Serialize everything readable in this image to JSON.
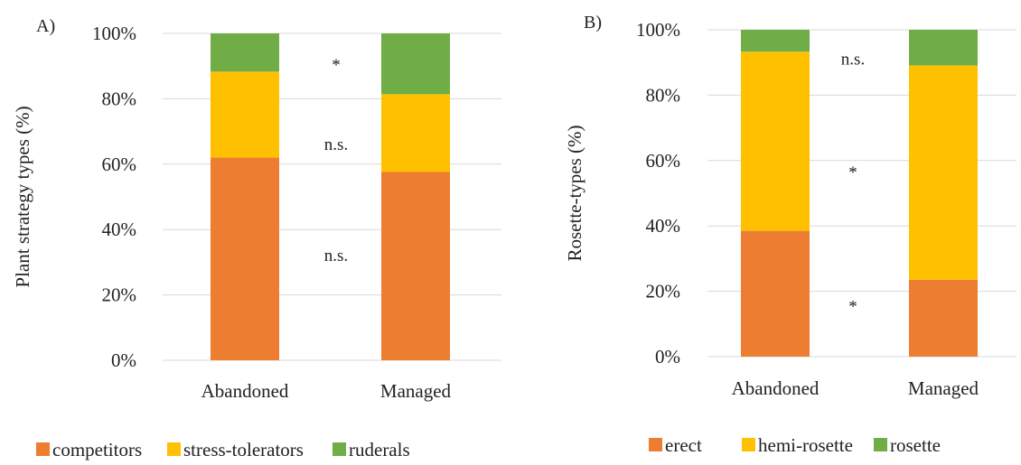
{
  "chart_data": [
    {
      "type": "bar",
      "stacked": true,
      "panel_label": "A)",
      "ylabel": "Plant strategy types  (%)",
      "categories": [
        "Abandoned",
        "Managed"
      ],
      "ylim": [
        0,
        100
      ],
      "yticks": [
        "0%",
        "20%",
        "40%",
        "60%",
        "80%",
        "100%"
      ],
      "grid": true,
      "legend_position": "bottom",
      "series": [
        {
          "name": "competitors",
          "color": "#ED7D31",
          "values": [
            62,
            57.6
          ]
        },
        {
          "name": "stress-tolerators",
          "color": "#FFC000",
          "values": [
            26.3,
            23.8
          ]
        },
        {
          "name": "ruderals",
          "color": "#70AD47",
          "values": [
            11.7,
            18.6
          ]
        }
      ],
      "annotations": [
        {
          "text": "*",
          "y": 92
        },
        {
          "text": "n.s.",
          "y": 66
        },
        {
          "text": "n.s.",
          "y": 32
        }
      ]
    },
    {
      "type": "bar",
      "stacked": true,
      "panel_label": "B)",
      "ylabel": "Rosette-types  (%)",
      "categories": [
        "Abandoned",
        "Managed"
      ],
      "ylim": [
        0,
        100
      ],
      "yticks": [
        "0%",
        "20%",
        "40%",
        "60%",
        "80%",
        "100%"
      ],
      "grid": true,
      "legend_position": "bottom",
      "series": [
        {
          "name": "erect",
          "color": "#ED7D31",
          "values": [
            38.5,
            23.5
          ]
        },
        {
          "name": "hemi-rosette",
          "color": "#FFC000",
          "values": [
            54.8,
            65.6
          ]
        },
        {
          "name": "rosette",
          "color": "#70AD47",
          "values": [
            6.7,
            10.9
          ]
        }
      ],
      "annotations": [
        {
          "text": "n.s.",
          "y": 91
        },
        {
          "text": "*",
          "y": 58
        },
        {
          "text": "*",
          "y": 17
        }
      ]
    }
  ]
}
